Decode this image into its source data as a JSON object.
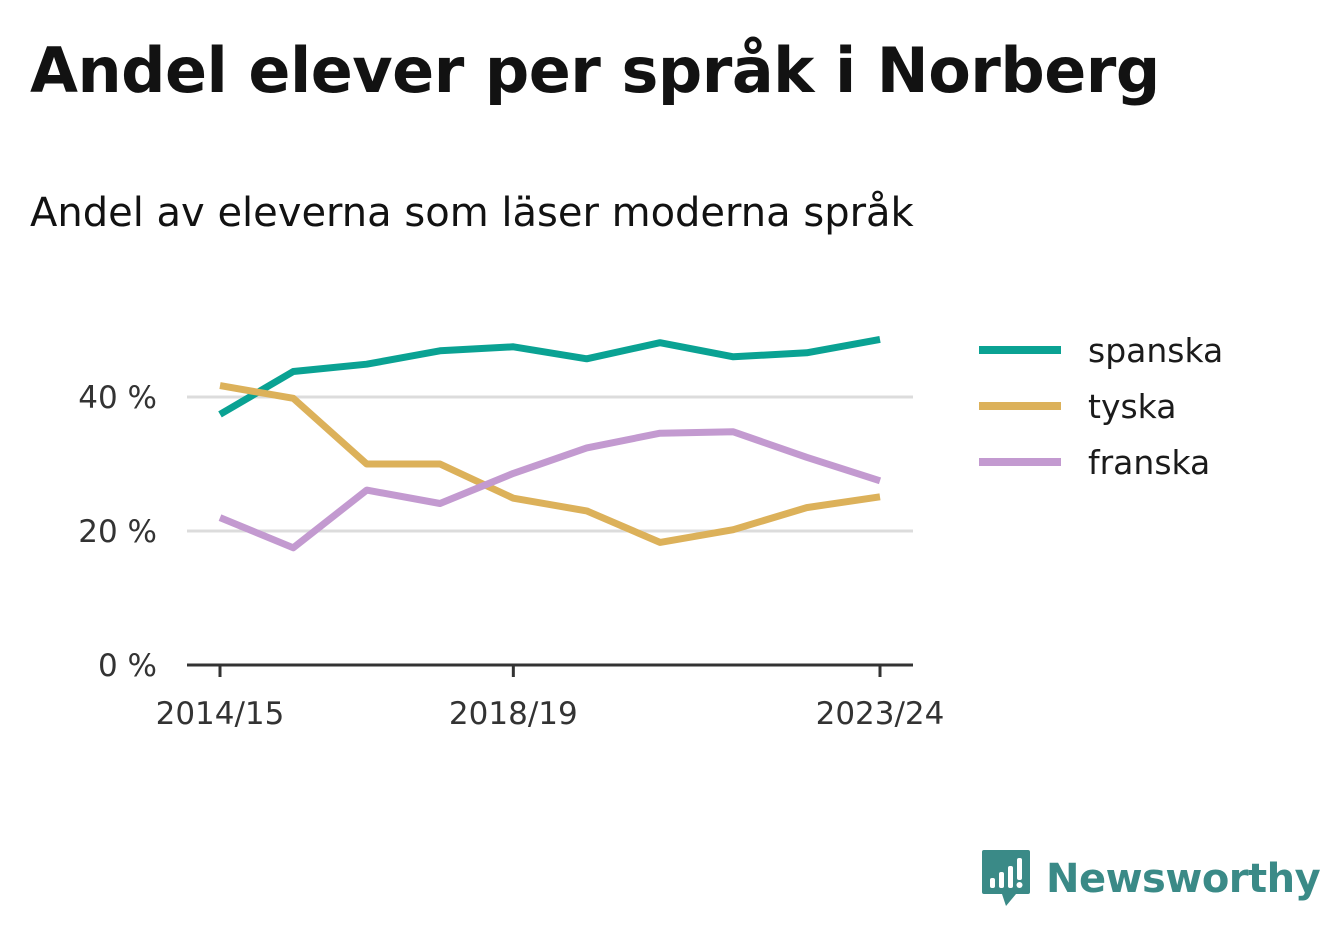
{
  "header": {
    "title": "Andel elever per språk i Norberg",
    "subtitle": "Andel av eleverna som läser moderna språk"
  },
  "brand": {
    "name": "Newsworthy",
    "icon": "newsworthy-chart-bubble-icon",
    "color": "#3a8a87"
  },
  "chart_data": {
    "type": "line",
    "x": [
      "2014/15",
      "2015/16",
      "2016/17",
      "2017/18",
      "2018/19",
      "2019/20",
      "2020/21",
      "2021/22",
      "2022/23",
      "2023/24"
    ],
    "x_tick_labels": [
      "2014/15",
      "2018/19",
      "2023/24"
    ],
    "y_ticks": [
      0,
      20,
      40
    ],
    "y_tick_labels": [
      "0 %",
      "20 %",
      "40 %"
    ],
    "ylim": [
      0,
      50
    ],
    "grid": true,
    "legend_position": "right",
    "series": [
      {
        "name": "spanska",
        "color": "#0aa293",
        "values": [
          37.4,
          43.8,
          44.9,
          46.9,
          47.5,
          45.7,
          48.1,
          46.0,
          46.6,
          48.6
        ]
      },
      {
        "name": "tyska",
        "color": "#dcb15a",
        "values": [
          41.7,
          39.8,
          30.0,
          30.0,
          24.9,
          23.0,
          18.3,
          20.2,
          23.5,
          25.1
        ]
      },
      {
        "name": "franska",
        "color": "#c39ad0",
        "values": [
          22.0,
          17.5,
          26.1,
          24.1,
          28.6,
          32.4,
          34.6,
          34.8,
          31.0,
          27.5
        ]
      }
    ]
  }
}
